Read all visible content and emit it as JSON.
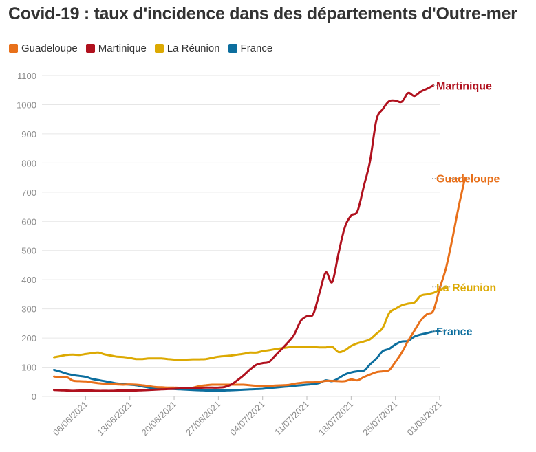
{
  "chart_data": {
    "type": "line",
    "title": "Covid-19 : taux d'incidence dans des départements d'Outre-mer",
    "xlabel": "",
    "ylabel": "",
    "ylim": [
      0,
      1100
    ],
    "yticks": [
      0,
      100,
      200,
      300,
      400,
      500,
      600,
      700,
      800,
      900,
      1000,
      1100
    ],
    "grid": true,
    "legend_position": "top-left",
    "x_start": "2021-06-01",
    "x_end": "2021-08-01",
    "xticks": [
      {
        "day": 5,
        "label": "06/06/2021"
      },
      {
        "day": 12,
        "label": "13/06/2021"
      },
      {
        "day": 19,
        "label": "20/06/2021"
      },
      {
        "day": 26,
        "label": "27/06/2021"
      },
      {
        "day": 33,
        "label": "04/07/2021"
      },
      {
        "day": 40,
        "label": "11/07/2021"
      },
      {
        "day": 47,
        "label": "18/07/2021"
      },
      {
        "day": 54,
        "label": "25/07/2021"
      },
      {
        "day": 61,
        "label": "01/08/2021"
      }
    ],
    "series": [
      {
        "name": "Guadeloupe",
        "color": "#e8701a",
        "end_label": "Guadeloupe",
        "points": [
          [
            0,
            68
          ],
          [
            1,
            65
          ],
          [
            2,
            66
          ],
          [
            3,
            54
          ],
          [
            4,
            52
          ],
          [
            5,
            51
          ],
          [
            6,
            48
          ],
          [
            7,
            45
          ],
          [
            8,
            43
          ],
          [
            9,
            42
          ],
          [
            10,
            41
          ],
          [
            11,
            40
          ],
          [
            12,
            41
          ],
          [
            13,
            40
          ],
          [
            14,
            38
          ],
          [
            15,
            35
          ],
          [
            16,
            32
          ],
          [
            17,
            31
          ],
          [
            18,
            30
          ],
          [
            19,
            30
          ],
          [
            20,
            29
          ],
          [
            21,
            28
          ],
          [
            22,
            30
          ],
          [
            23,
            35
          ],
          [
            24,
            38
          ],
          [
            25,
            40
          ],
          [
            26,
            40
          ],
          [
            27,
            40
          ],
          [
            28,
            40
          ],
          [
            29,
            40
          ],
          [
            30,
            40
          ],
          [
            31,
            38
          ],
          [
            32,
            36
          ],
          [
            33,
            35
          ],
          [
            34,
            35
          ],
          [
            35,
            37
          ],
          [
            36,
            38
          ],
          [
            37,
            39
          ],
          [
            38,
            43
          ],
          [
            39,
            46
          ],
          [
            40,
            48
          ],
          [
            41,
            48
          ],
          [
            42,
            50
          ],
          [
            43,
            53
          ],
          [
            44,
            53
          ],
          [
            45,
            52
          ],
          [
            46,
            52
          ],
          [
            47,
            58
          ],
          [
            48,
            55
          ],
          [
            49,
            66
          ],
          [
            50,
            75
          ],
          [
            51,
            83
          ],
          [
            52,
            86
          ],
          [
            53,
            90
          ],
          [
            54,
            118
          ],
          [
            55,
            150
          ],
          [
            56,
            190
          ],
          [
            57,
            225
          ],
          [
            58,
            260
          ],
          [
            59,
            282
          ],
          [
            60,
            294
          ],
          [
            61,
            370
          ],
          [
            62,
            440
          ],
          [
            63,
            540
          ],
          [
            64,
            650
          ],
          [
            65,
            748
          ]
        ]
      },
      {
        "name": "Martinique",
        "color": "#b0111e",
        "end_label": "Martinique",
        "points": [
          [
            0,
            22
          ],
          [
            1,
            21
          ],
          [
            2,
            20
          ],
          [
            3,
            19
          ],
          [
            4,
            20
          ],
          [
            5,
            20
          ],
          [
            6,
            20
          ],
          [
            7,
            19
          ],
          [
            8,
            19
          ],
          [
            9,
            19
          ],
          [
            10,
            20
          ],
          [
            11,
            20
          ],
          [
            12,
            20
          ],
          [
            13,
            20
          ],
          [
            14,
            21
          ],
          [
            15,
            22
          ],
          [
            16,
            23
          ],
          [
            17,
            24
          ],
          [
            18,
            25
          ],
          [
            19,
            26
          ],
          [
            20,
            27
          ],
          [
            21,
            28
          ],
          [
            22,
            28
          ],
          [
            23,
            29
          ],
          [
            24,
            30
          ],
          [
            25,
            30
          ],
          [
            26,
            30
          ],
          [
            27,
            32
          ],
          [
            28,
            40
          ],
          [
            29,
            55
          ],
          [
            30,
            72
          ],
          [
            31,
            92
          ],
          [
            32,
            108
          ],
          [
            33,
            114
          ],
          [
            34,
            118
          ],
          [
            35,
            140
          ],
          [
            36,
            162
          ],
          [
            37,
            185
          ],
          [
            38,
            212
          ],
          [
            39,
            258
          ],
          [
            40,
            275
          ],
          [
            41,
            282
          ],
          [
            42,
            355
          ],
          [
            43,
            425
          ],
          [
            44,
            392
          ],
          [
            45,
            490
          ],
          [
            46,
            580
          ],
          [
            47,
            620
          ],
          [
            48,
            635
          ],
          [
            49,
            720
          ],
          [
            50,
            808
          ],
          [
            51,
            948
          ],
          [
            52,
            985
          ],
          [
            53,
            1012
          ],
          [
            54,
            1014
          ],
          [
            55,
            1010
          ],
          [
            56,
            1040
          ],
          [
            57,
            1030
          ],
          [
            58,
            1045
          ],
          [
            59,
            1055
          ],
          [
            60,
            1066
          ]
        ]
      },
      {
        "name": "La Réunion",
        "color": "#dca902",
        "end_label": "La Réunion",
        "points": [
          [
            0,
            134
          ],
          [
            1,
            138
          ],
          [
            2,
            142
          ],
          [
            3,
            143
          ],
          [
            4,
            142
          ],
          [
            5,
            145
          ],
          [
            6,
            148
          ],
          [
            7,
            150
          ],
          [
            8,
            144
          ],
          [
            9,
            140
          ],
          [
            10,
            136
          ],
          [
            11,
            135
          ],
          [
            12,
            132
          ],
          [
            13,
            128
          ],
          [
            14,
            128
          ],
          [
            15,
            130
          ],
          [
            16,
            130
          ],
          [
            17,
            130
          ],
          [
            18,
            128
          ],
          [
            19,
            126
          ],
          [
            20,
            124
          ],
          [
            21,
            126
          ],
          [
            22,
            127
          ],
          [
            23,
            127
          ],
          [
            24,
            128
          ],
          [
            25,
            132
          ],
          [
            26,
            136
          ],
          [
            27,
            138
          ],
          [
            28,
            140
          ],
          [
            29,
            143
          ],
          [
            30,
            146
          ],
          [
            31,
            150
          ],
          [
            32,
            150
          ],
          [
            33,
            155
          ],
          [
            34,
            158
          ],
          [
            35,
            162
          ],
          [
            36,
            165
          ],
          [
            37,
            168
          ],
          [
            38,
            170
          ],
          [
            39,
            170
          ],
          [
            40,
            170
          ],
          [
            41,
            169
          ],
          [
            42,
            168
          ],
          [
            43,
            168
          ],
          [
            44,
            170
          ],
          [
            45,
            152
          ],
          [
            46,
            158
          ],
          [
            47,
            173
          ],
          [
            48,
            182
          ],
          [
            49,
            188
          ],
          [
            50,
            196
          ],
          [
            51,
            215
          ],
          [
            52,
            235
          ],
          [
            53,
            285
          ],
          [
            54,
            300
          ],
          [
            55,
            312
          ],
          [
            56,
            318
          ],
          [
            57,
            322
          ],
          [
            58,
            345
          ],
          [
            59,
            350
          ],
          [
            60,
            355
          ],
          [
            61,
            365
          ],
          [
            62,
            375
          ]
        ]
      },
      {
        "name": "France",
        "color": "#0c6e9e",
        "end_label": "France",
        "points": [
          [
            0,
            91
          ],
          [
            1,
            85
          ],
          [
            2,
            78
          ],
          [
            3,
            73
          ],
          [
            4,
            70
          ],
          [
            5,
            67
          ],
          [
            6,
            60
          ],
          [
            7,
            56
          ],
          [
            8,
            52
          ],
          [
            9,
            48
          ],
          [
            10,
            44
          ],
          [
            11,
            42
          ],
          [
            12,
            40
          ],
          [
            13,
            38
          ],
          [
            14,
            34
          ],
          [
            15,
            30
          ],
          [
            16,
            28
          ],
          [
            17,
            27
          ],
          [
            18,
            26
          ],
          [
            19,
            25
          ],
          [
            20,
            24
          ],
          [
            21,
            23
          ],
          [
            22,
            22
          ],
          [
            23,
            21
          ],
          [
            24,
            20
          ],
          [
            25,
            20
          ],
          [
            26,
            20
          ],
          [
            27,
            20
          ],
          [
            28,
            21
          ],
          [
            29,
            22
          ],
          [
            30,
            23
          ],
          [
            31,
            24
          ],
          [
            32,
            25
          ],
          [
            33,
            26
          ],
          [
            34,
            28
          ],
          [
            35,
            30
          ],
          [
            36,
            32
          ],
          [
            37,
            34
          ],
          [
            38,
            36
          ],
          [
            39,
            38
          ],
          [
            40,
            40
          ],
          [
            41,
            42
          ],
          [
            42,
            46
          ],
          [
            43,
            55
          ],
          [
            44,
            52
          ],
          [
            45,
            62
          ],
          [
            46,
            75
          ],
          [
            47,
            82
          ],
          [
            48,
            86
          ],
          [
            49,
            88
          ],
          [
            50,
            110
          ],
          [
            51,
            130
          ],
          [
            52,
            155
          ],
          [
            53,
            163
          ],
          [
            54,
            178
          ],
          [
            55,
            188
          ],
          [
            56,
            190
          ],
          [
            57,
            205
          ],
          [
            58,
            212
          ],
          [
            59,
            217
          ],
          [
            60,
            222
          ],
          [
            61,
            224
          ]
        ]
      }
    ]
  }
}
